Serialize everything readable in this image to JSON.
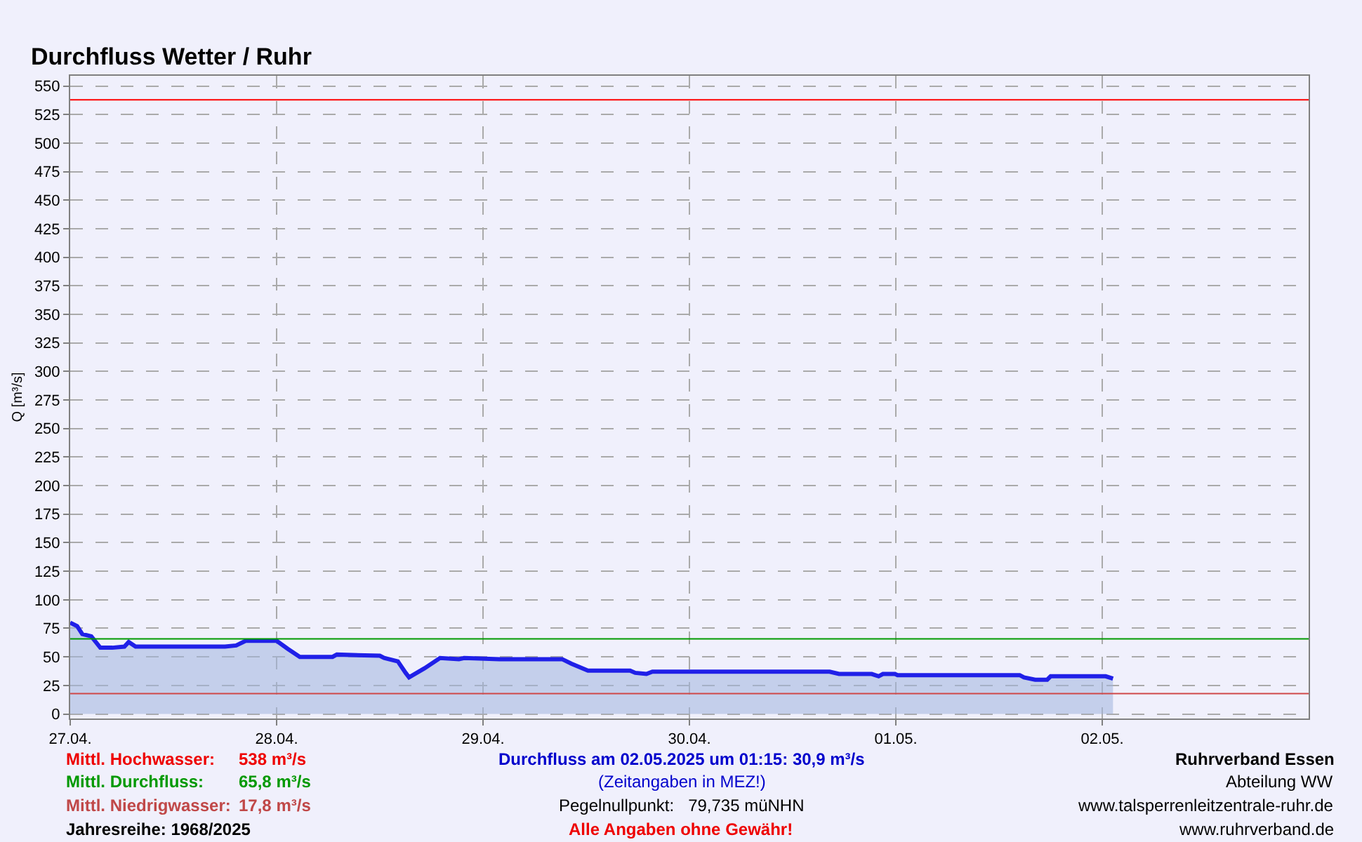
{
  "chart_data": {
    "type": "area",
    "title": "Durchfluss Wetter / Ruhr",
    "ylabel": "Q [m³/s]",
    "x": [
      "2025-04-27T00:00",
      "2025-04-27T00:48",
      "2025-04-27T01:24",
      "2025-04-27T02:27",
      "2025-04-27T03:30",
      "2025-04-27T04:54",
      "2025-04-27T06:18",
      "2025-04-27T06:48",
      "2025-04-27T07:36",
      "2025-04-27T16:54",
      "2025-04-27T18:00",
      "2025-04-27T19:18",
      "2025-04-27T20:24",
      "2025-04-28T00:00",
      "2025-04-28T01:18",
      "2025-04-28T02:42",
      "2025-04-28T06:30",
      "2025-04-28T07:00",
      "2025-04-28T12:00",
      "2025-04-28T12:30",
      "2025-04-28T14:06",
      "2025-04-28T15:00",
      "2025-04-28T15:24",
      "2025-04-28T17:12",
      "2025-04-28T19:00",
      "2025-04-28T21:12",
      "2025-04-28T21:48",
      "2025-04-29T01:54",
      "2025-04-29T09:12",
      "2025-04-29T10:18",
      "2025-04-29T12:12",
      "2025-04-29T17:06",
      "2025-04-29T17:42",
      "2025-04-29T19:00",
      "2025-04-29T19:42",
      "2025-04-30T16:18",
      "2025-04-30T17:24",
      "2025-04-30T21:12",
      "2025-04-30T22:00",
      "2025-04-30T22:30",
      "2025-04-30T23:54",
      "2025-05-01T00:12",
      "2025-05-01T14:24",
      "2025-05-01T14:54",
      "2025-05-01T16:12",
      "2025-05-01T17:36",
      "2025-05-01T18:00",
      "2025-05-02T00:24",
      "2025-05-02T01:15"
    ],
    "series": [
      {
        "color": "#2020e8",
        "values": [
          80,
          77,
          70,
          68,
          58,
          58,
          59,
          63,
          59,
          59,
          59,
          60,
          64,
          64,
          57,
          50,
          50,
          52,
          51,
          49,
          46,
          36,
          32,
          40,
          49,
          48,
          49,
          48,
          48,
          44,
          38,
          38,
          36,
          35,
          37,
          37,
          35,
          35,
          33,
          35,
          35,
          34,
          34,
          32,
          30,
          30,
          33,
          33,
          30.9
        ]
      }
    ],
    "xlim": [
      "2025-04-27T00:00",
      "2025-05-03T00:00"
    ],
    "xticks": [
      {
        "value": "2025-04-27",
        "label": "27.04."
      },
      {
        "value": "2025-04-28",
        "label": "28.04."
      },
      {
        "value": "2025-04-29",
        "label": "29.04."
      },
      {
        "value": "2025-04-30",
        "label": "30.04."
      },
      {
        "value": "2025-05-01",
        "label": "01.05."
      },
      {
        "value": "2025-05-02",
        "label": "02.05."
      }
    ],
    "ylim": [
      -4,
      559
    ],
    "yticks": [
      0,
      25,
      50,
      75,
      100,
      125,
      150,
      175,
      200,
      225,
      250,
      275,
      300,
      325,
      350,
      375,
      400,
      425,
      450,
      475,
      500,
      525,
      550
    ],
    "ref_lines": [
      {
        "axis": "y",
        "value": 538,
        "color": "#ff0000"
      },
      {
        "axis": "y",
        "value": 65.8,
        "color": "#009900"
      },
      {
        "axis": "y",
        "value": 17.8,
        "color": "#d04848"
      }
    ],
    "annotations": [
      "Mittl. Hochwasser:",
      "538 m³/s",
      "Mittl. Durchfluss:",
      "65,8 m³/s",
      "Mittl. Niedrigwasser:",
      "17,8 m³/s",
      "Jahresreihe: 1968/2025",
      "Durchfluss am 02.05.2025 um 01:15: 30,9 m³/s",
      "(Zeitangaben in MEZ!)",
      "Pegelnullpunkt:   79,735 müNHN",
      "Alle Angaben ohne Gewähr!",
      "Ruhrverband Essen",
      "Abteilung WW",
      "www.talsperrenleitzentrale-ruhr.de",
      "www.ruhrverband.de"
    ],
    "grid": true,
    "marker": "none",
    "line_style": "solid"
  }
}
